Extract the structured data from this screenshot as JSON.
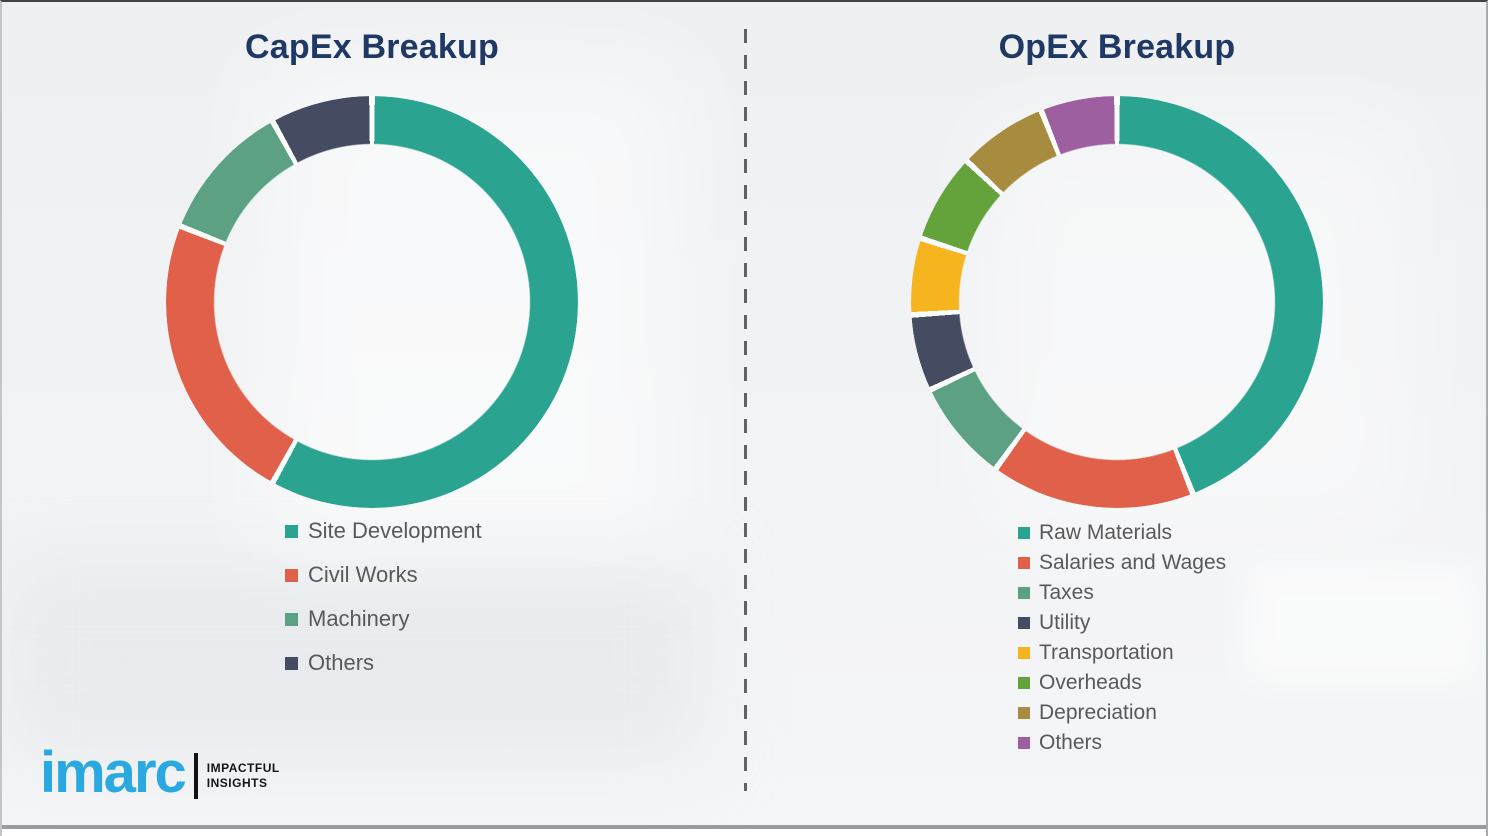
{
  "page": {
    "background_color": "#F1F2F4",
    "title_color": "#1F3864",
    "legend_text_color": "#595959",
    "divider_color": "#5F6368",
    "bottom_rule_color": "#9B9B9B"
  },
  "chart_data": [
    {
      "type": "pie",
      "variant": "donut",
      "title": "CapEx Breakup",
      "labels": [
        "Site Development",
        "Civil Works",
        "Machinery",
        "Others"
      ],
      "values": [
        58,
        23,
        11,
        8
      ],
      "colors": [
        "#2AA491",
        "#E0604A",
        "#5CA184",
        "#454B61"
      ],
      "units": "percent-estimated",
      "start_angle_deg": 0,
      "direction": "clockwise",
      "legend_position": "below"
    },
    {
      "type": "pie",
      "variant": "donut",
      "title": "OpEx Breakup",
      "labels": [
        "Raw Materials",
        "Salaries and Wages",
        "Taxes",
        "Utility",
        "Transportation",
        "Overheads",
        "Depreciation",
        "Others"
      ],
      "values": [
        44,
        16,
        8,
        6,
        6,
        7,
        7,
        6
      ],
      "colors": [
        "#2AA491",
        "#E0604A",
        "#5CA184",
        "#454B61",
        "#F6B41E",
        "#64A33C",
        "#A78B3E",
        "#9D5FA0"
      ],
      "units": "percent-estimated",
      "start_angle_deg": 0,
      "direction": "clockwise",
      "legend_position": "below"
    }
  ],
  "logo": {
    "wordmark": "imarc",
    "wordmark_color": "#29A9E0",
    "tagline_line1": "IMPACTFUL",
    "tagline_line2": "INSIGHTS"
  }
}
